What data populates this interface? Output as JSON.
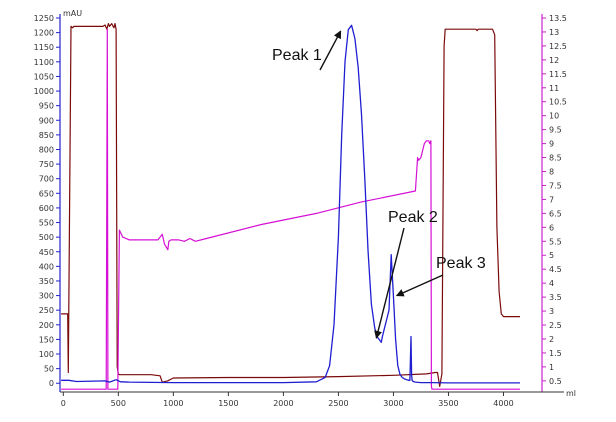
{
  "chart_data": {
    "type": "line",
    "x_unit": "ml",
    "y_left_unit": "mAU",
    "xlim": [
      -30,
      4350
    ],
    "x_ticks": [
      0,
      500,
      1000,
      1500,
      2000,
      2500,
      3000,
      3500,
      4000
    ],
    "y_left": {
      "lim": [
        -30,
        1250
      ],
      "ticks": [
        0,
        50,
        100,
        150,
        200,
        250,
        300,
        350,
        400,
        450,
        500,
        550,
        600,
        650,
        700,
        750,
        800,
        850,
        900,
        950,
        1000,
        1050,
        1100,
        1150,
        1200,
        1250
      ]
    },
    "y_right": {
      "lim": [
        0.1,
        13.5
      ],
      "ticks": [
        "0.5",
        "1",
        "1.5",
        "2",
        "2.5",
        "3",
        "3.5",
        "4",
        "4.5",
        "5",
        "5.5",
        "6",
        "6.5",
        "7",
        "7.5",
        "8",
        "8.5",
        "9",
        "9.5",
        "10",
        "10.5",
        "11",
        "11.5",
        "12",
        "12.5",
        "13",
        "13.5"
      ]
    },
    "grid": false,
    "colors": {
      "uv": "#1f1fd1",
      "conductivity": "#7a0a0a",
      "concentration": "#d60fd6",
      "axis_left": "#2222cc",
      "axis_right": "#cc22cc"
    },
    "series": [
      {
        "key": "uv",
        "axis": "left",
        "x": [
          -20,
          50,
          120,
          380,
          420,
          480,
          520,
          600,
          1000,
          1500,
          2000,
          2300,
          2380,
          2420,
          2460,
          2500,
          2530,
          2560,
          2590,
          2620,
          2650,
          2680,
          2710,
          2740,
          2770,
          2800,
          2830,
          2850,
          2870,
          2880,
          2890,
          2900,
          2920,
          2940,
          2960,
          2980,
          3000,
          3020,
          3040,
          3060,
          3080,
          3100,
          3120,
          3140,
          3150,
          3160,
          3165,
          3170,
          3180,
          3200,
          3250,
          3350,
          3500,
          4150
        ],
        "y": [
          10,
          10,
          6,
          8,
          4,
          12,
          5,
          4,
          2,
          2,
          2,
          5,
          20,
          60,
          200,
          500,
          850,
          1100,
          1210,
          1225,
          1180,
          1080,
          920,
          700,
          450,
          270,
          190,
          160,
          150,
          145,
          140,
          160,
          190,
          220,
          250,
          440,
          300,
          150,
          60,
          30,
          20,
          15,
          12,
          10,
          10,
          160,
          30,
          10,
          6,
          4,
          2,
          2,
          1,
          1
        ]
      },
      {
        "key": "conductivity",
        "axis": "right",
        "x": [
          -20,
          40,
          45,
          70,
          85,
          95,
          120,
          360,
          380,
          395,
          410,
          420,
          440,
          460,
          470,
          480,
          490,
          500,
          510,
          520,
          800,
          880,
          900,
          950,
          1000,
          1500,
          2000,
          2500,
          3000,
          3300,
          3380,
          3400,
          3420,
          3440,
          3460,
          3470,
          3490,
          3600,
          3700,
          3750,
          3760,
          3770,
          3900,
          3920,
          3940,
          3960,
          3980,
          4000,
          4150
        ],
        "y": [
          2.9,
          2.9,
          0.8,
          13.2,
          13.15,
          13.2,
          13.2,
          13.2,
          13.25,
          13.1,
          13.3,
          13.2,
          13.3,
          13.15,
          13.3,
          13.1,
          1.0,
          0.75,
          0.72,
          0.72,
          0.72,
          0.68,
          0.45,
          0.5,
          0.6,
          0.62,
          0.62,
          0.65,
          0.7,
          0.75,
          0.8,
          0.8,
          0.3,
          0.75,
          12.5,
          13.1,
          13.1,
          13.1,
          13.1,
          13.1,
          13.05,
          13.1,
          13.1,
          12.9,
          6.0,
          3.7,
          2.9,
          2.8,
          2.8
        ]
      },
      {
        "key": "concentration",
        "axis": "right",
        "x": [
          -20,
          390,
          400,
          405,
          410,
          495,
          510,
          540,
          600,
          860,
          900,
          920,
          950,
          960,
          980,
          1000,
          1050,
          1100,
          1150,
          1200,
          1300,
          1800,
          2300,
          2700,
          3200,
          3220,
          3230,
          3250,
          3280,
          3300,
          3320,
          3330,
          3340,
          3345,
          3350,
          3355,
          3360,
          3400,
          4150
        ],
        "y": [
          0.2,
          0.2,
          13.1,
          0.2,
          0.2,
          0.2,
          5.9,
          5.65,
          5.55,
          5.55,
          5.75,
          5.4,
          5.2,
          5.5,
          5.55,
          5.55,
          5.55,
          5.5,
          5.6,
          5.5,
          5.6,
          6.1,
          6.5,
          6.9,
          7.3,
          8.5,
          8.4,
          8.5,
          9.0,
          9.1,
          9.1,
          9.0,
          9.1,
          0.3,
          0.2,
          0.2,
          0.2,
          0.2,
          0.2
        ]
      }
    ],
    "annotations": [
      {
        "text": "Peak 1",
        "target_x": 2520,
        "target_y": 1205
      },
      {
        "text": "Peak 2",
        "target_x": 2845,
        "target_y": 155
      },
      {
        "text": "Peak 3",
        "target_x": 3030,
        "target_y": 300
      }
    ]
  }
}
